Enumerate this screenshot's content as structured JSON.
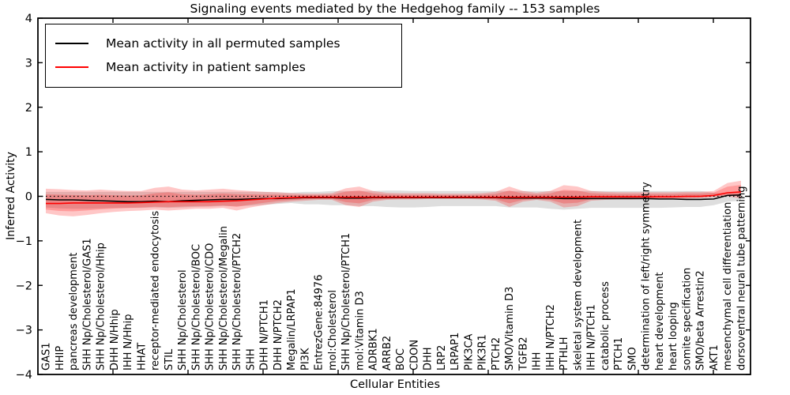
{
  "chart_data": {
    "type": "line",
    "title": "Signaling events mediated by the Hedgehog family -- 153 samples",
    "xlabel": "Cellular Entities",
    "ylabel": "Inferred Activity",
    "ylim": [
      -4,
      4
    ],
    "yticks": [
      -4,
      -3,
      -2,
      -1,
      0,
      1,
      2,
      3,
      4
    ],
    "grid": false,
    "legend_position": "upper left",
    "baseline": {
      "y": 0,
      "style": "dotted",
      "color": "#000000"
    },
    "categories": [
      "GAS1",
      "HHIP",
      "pancreas development",
      "SHH Np/Cholesterol/GAS1",
      "SHH Np/Cholesterol/Hhip",
      "DHH N/Hhip",
      "IHH N/Hhip",
      "HHAT",
      "receptor-mediated endocytosis",
      "STIL",
      "SHH Np/Cholesterol",
      "SHH Np/Cholesterol/BOC",
      "SHH Np/Cholesterol/CDO",
      "SHH Np/Cholesterol/Megalin",
      "SHH Np/Cholesterol/PTCH2",
      "SHH",
      "DHH N/PTCH1",
      "DHH N/PTCH2",
      "Megalin/LRPAP1",
      "PI3K",
      "EntrezGene:84976",
      "mol:Cholesterol",
      "SHH Np/Cholesterol/PTCH1",
      "mol:Vitamin D3",
      "ADRBK1",
      "ARRB2",
      "BOC",
      "CDON",
      "DHH",
      "LRP2",
      "LRPAP1",
      "PIK3CA",
      "PIK3R1",
      "PTCH2",
      "SMO/Vitamin D3",
      "TGFB2",
      "IHH",
      "IHH N/PTCH2",
      "PTHLH",
      "skeletal system development",
      "IHH N/PTCH1",
      "catabolic process",
      "PTCH1",
      "SMO",
      "determination of left/right symmetry",
      "heart development",
      "heart looping",
      "somite specification",
      "SMO/beta Arrestin2",
      "AKT1",
      "mesenchymal cell differentiation",
      "dorsoventral neural tube patterning"
    ],
    "series": [
      {
        "name": "Mean activity in all permuted samples",
        "color": "#000000",
        "values": [
          -0.07,
          -0.08,
          -0.08,
          -0.09,
          -0.1,
          -0.11,
          -0.12,
          -0.12,
          -0.11,
          -0.12,
          -0.1,
          -0.09,
          -0.08,
          -0.07,
          -0.07,
          -0.06,
          -0.05,
          -0.05,
          -0.04,
          -0.03,
          -0.03,
          -0.03,
          -0.04,
          -0.04,
          -0.03,
          -0.03,
          -0.03,
          -0.03,
          -0.03,
          -0.03,
          -0.03,
          -0.03,
          -0.03,
          -0.03,
          -0.04,
          -0.04,
          -0.04,
          -0.04,
          -0.05,
          -0.05,
          -0.05,
          -0.05,
          -0.05,
          -0.05,
          -0.05,
          -0.06,
          -0.06,
          -0.07,
          -0.07,
          -0.06,
          0.02,
          0.03
        ]
      },
      {
        "name": "Mean activity in patient samples",
        "color": "#ff0000",
        "values": [
          -0.16,
          -0.16,
          -0.15,
          -0.15,
          -0.15,
          -0.15,
          -0.15,
          -0.14,
          -0.13,
          -0.12,
          -0.12,
          -0.12,
          -0.12,
          -0.11,
          -0.1,
          -0.08,
          -0.06,
          -0.04,
          -0.03,
          -0.02,
          -0.02,
          -0.02,
          -0.02,
          -0.02,
          -0.02,
          -0.02,
          -0.02,
          -0.02,
          -0.02,
          -0.02,
          -0.02,
          -0.02,
          -0.02,
          -0.02,
          -0.02,
          -0.02,
          -0.02,
          -0.02,
          -0.02,
          -0.02,
          -0.01,
          -0.01,
          -0.01,
          -0.01,
          -0.01,
          -0.01,
          -0.01,
          0.0,
          0.0,
          0.02,
          0.08,
          0.1
        ]
      }
    ],
    "bands": [
      {
        "name": "permuted samples std band",
        "color": "#000000",
        "alpha": 0.13,
        "upper": [
          0.1,
          0.1,
          0.1,
          0.1,
          0.1,
          0.1,
          0.1,
          0.1,
          0.1,
          0.1,
          0.1,
          0.1,
          0.1,
          0.1,
          0.1,
          0.1,
          0.1,
          0.09,
          0.08,
          0.1,
          0.1,
          0.12,
          0.12,
          0.12,
          0.12,
          0.13,
          0.13,
          0.12,
          0.12,
          0.12,
          0.12,
          0.12,
          0.12,
          0.12,
          0.12,
          0.12,
          0.12,
          0.12,
          0.12,
          0.12,
          0.12,
          0.12,
          0.12,
          0.12,
          0.12,
          0.12,
          0.12,
          0.12,
          0.12,
          0.08,
          0.06,
          0.1
        ],
        "lower": [
          -0.25,
          -0.27,
          -0.28,
          -0.28,
          -0.27,
          -0.26,
          -0.26,
          -0.26,
          -0.25,
          -0.26,
          -0.25,
          -0.24,
          -0.23,
          -0.22,
          -0.22,
          -0.21,
          -0.19,
          -0.17,
          -0.15,
          -0.18,
          -0.18,
          -0.2,
          -0.2,
          -0.22,
          -0.22,
          -0.24,
          -0.25,
          -0.25,
          -0.24,
          -0.22,
          -0.22,
          -0.22,
          -0.22,
          -0.22,
          -0.25,
          -0.25,
          -0.25,
          -0.28,
          -0.3,
          -0.28,
          -0.26,
          -0.26,
          -0.26,
          -0.26,
          -0.26,
          -0.26,
          -0.25,
          -0.24,
          -0.24,
          -0.2,
          -0.12,
          -0.1
        ]
      },
      {
        "name": "patient samples std band",
        "color": "#ff0000",
        "alpha": 0.22,
        "inner_scale": 0.62,
        "upper": [
          0.17,
          0.16,
          0.14,
          0.13,
          0.15,
          0.13,
          0.12,
          0.12,
          0.19,
          0.22,
          0.15,
          0.13,
          0.15,
          0.17,
          0.14,
          0.12,
          0.1,
          0.09,
          0.07,
          0.06,
          0.06,
          0.07,
          0.18,
          0.22,
          0.12,
          0.08,
          0.07,
          0.07,
          0.07,
          0.06,
          0.06,
          0.06,
          0.07,
          0.1,
          0.22,
          0.12,
          0.08,
          0.12,
          0.25,
          0.22,
          0.12,
          0.1,
          0.09,
          0.09,
          0.09,
          0.09,
          0.09,
          0.1,
          0.1,
          0.12,
          0.3,
          0.35
        ],
        "lower": [
          -0.38,
          -0.43,
          -0.45,
          -0.42,
          -0.38,
          -0.35,
          -0.33,
          -0.32,
          -0.3,
          -0.32,
          -0.3,
          -0.28,
          -0.28,
          -0.26,
          -0.32,
          -0.25,
          -0.2,
          -0.15,
          -0.12,
          -0.1,
          -0.08,
          -0.08,
          -0.2,
          -0.24,
          -0.12,
          -0.08,
          -0.07,
          -0.07,
          -0.06,
          -0.06,
          -0.06,
          -0.06,
          -0.07,
          -0.1,
          -0.24,
          -0.12,
          -0.08,
          -0.12,
          -0.25,
          -0.22,
          -0.1,
          -0.08,
          -0.07,
          -0.07,
          -0.06,
          -0.06,
          -0.05,
          -0.05,
          -0.04,
          -0.02,
          0.0,
          -0.05
        ]
      }
    ]
  }
}
